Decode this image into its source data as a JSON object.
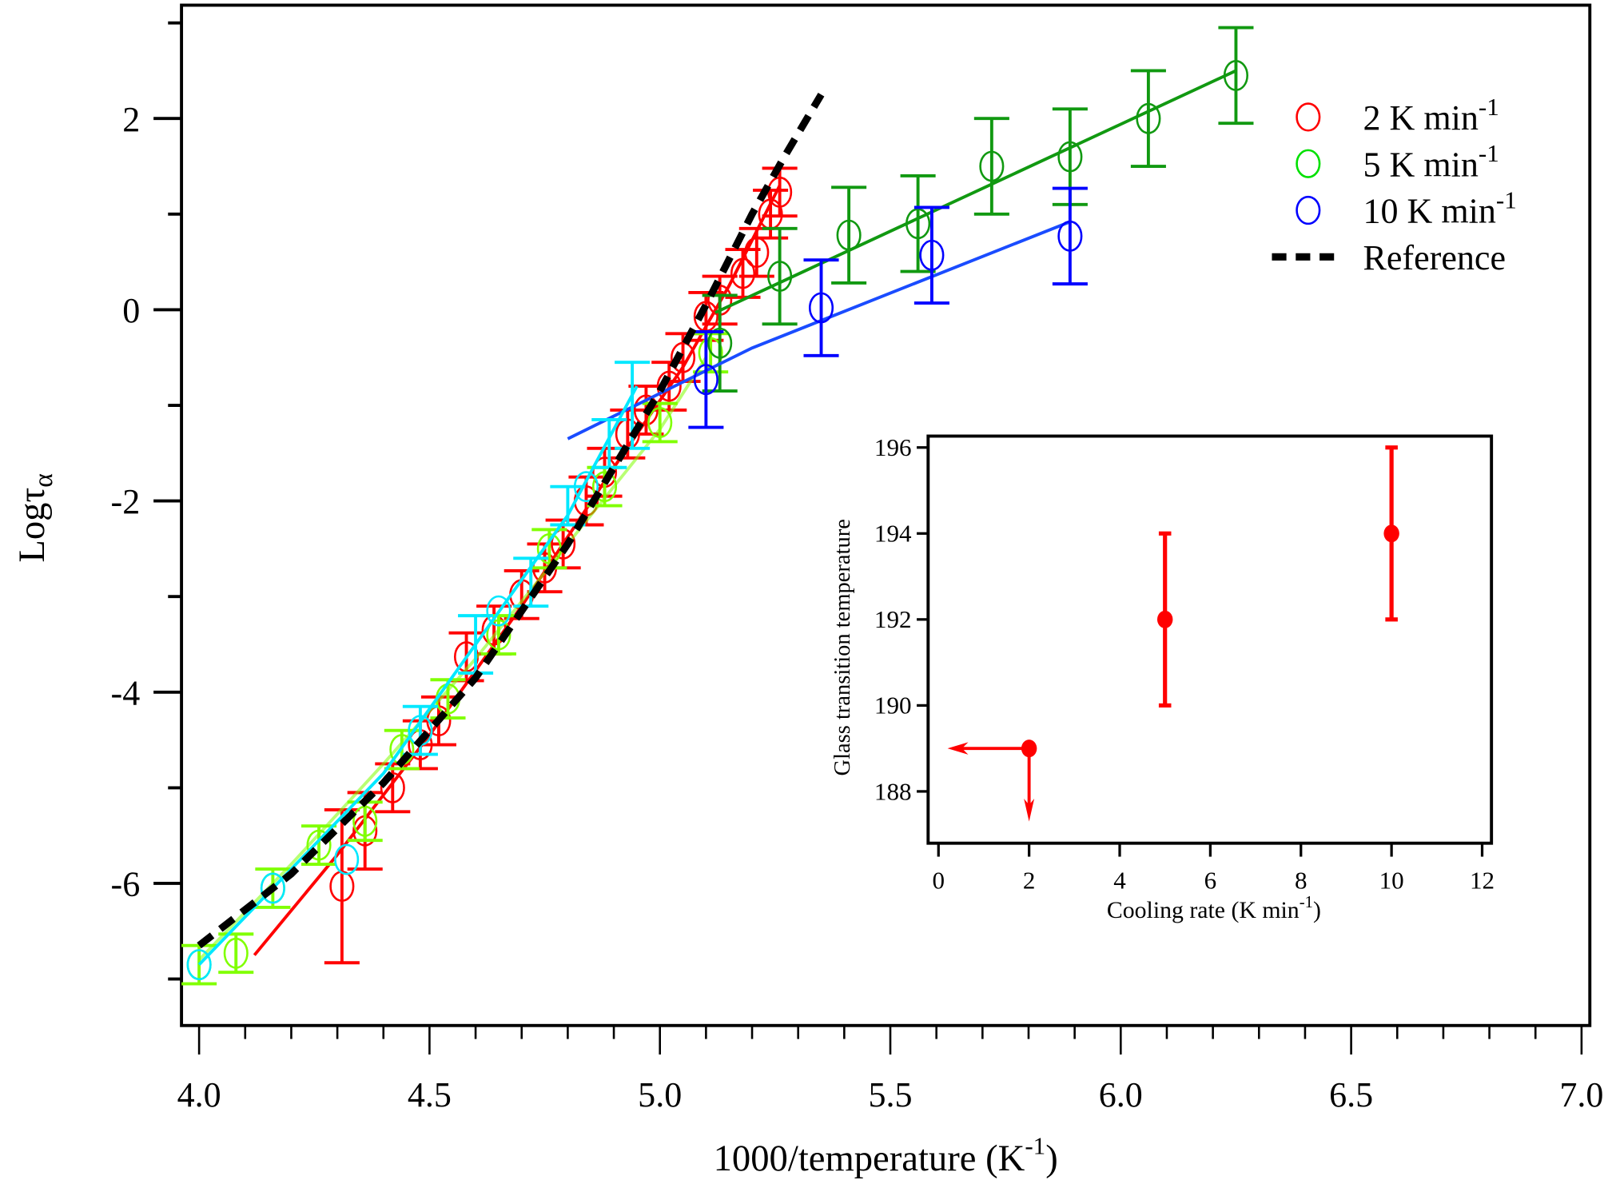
{
  "chart_data": {
    "type": "scatter",
    "main": {
      "xlabel": "1000/temperature (K",
      "xlabel_sup": "-1",
      "xlabel_close": ")",
      "ylabel": "Logτ",
      "ylabel_sub": "α",
      "xlim": [
        3.96,
        7.02
      ],
      "ylim": [
        -7.49,
        3.18
      ],
      "xticks": [
        "4.0",
        "4.5",
        "5.0",
        "5.5",
        "6.0",
        "6.5",
        "7.0"
      ],
      "xtick_values": [
        4.0,
        4.5,
        5.0,
        5.5,
        6.0,
        6.5,
        7.0
      ],
      "yticks": [
        "2",
        "0",
        "-2",
        "-4",
        "-6"
      ],
      "ytick_values": [
        2,
        0,
        -2,
        -4,
        -6
      ],
      "legend_position": "top-right",
      "legend": [
        {
          "label": "2 K min",
          "sup": "-1",
          "color": "#ff0000",
          "marker": "circle"
        },
        {
          "label": "5 K min",
          "sup": "-1",
          "color": "#00e000",
          "marker": "circle"
        },
        {
          "label": "10 K min",
          "sup": "-1",
          "color": "#0000ff",
          "marker": "circle"
        },
        {
          "label": "Reference",
          "sup": "",
          "color": "#000000",
          "marker": "dashed-line"
        }
      ],
      "series": [
        {
          "name": "2 K min-1",
          "color": "#ff0000",
          "points": [
            [
              4.31,
              -6.03,
              0.8
            ],
            [
              4.36,
              -5.45,
              0.4
            ],
            [
              4.42,
              -5.0,
              0.25
            ],
            [
              4.48,
              -4.55,
              0.25
            ],
            [
              4.52,
              -4.3,
              0.25
            ],
            [
              4.58,
              -3.63,
              0.25
            ],
            [
              4.64,
              -3.35,
              0.25
            ],
            [
              4.7,
              -2.98,
              0.25
            ],
            [
              4.75,
              -2.7,
              0.25
            ],
            [
              4.79,
              -2.45,
              0.25
            ],
            [
              4.84,
              -2.0,
              0.25
            ],
            [
              4.88,
              -1.7,
              0.25
            ],
            [
              4.93,
              -1.3,
              0.25
            ],
            [
              4.97,
              -1.05,
              0.25
            ],
            [
              5.02,
              -0.8,
              0.25
            ],
            [
              5.05,
              -0.5,
              0.25
            ],
            [
              5.1,
              -0.07,
              0.25
            ],
            [
              5.13,
              0.1,
              0.25
            ],
            [
              5.18,
              0.38,
              0.25
            ],
            [
              5.21,
              0.6,
              0.25
            ],
            [
              5.24,
              1.0,
              0.25
            ],
            [
              5.26,
              1.23,
              0.25
            ]
          ],
          "fit": [
            [
              4.12,
              -6.75
            ],
            [
              4.3,
              -5.7
            ],
            [
              4.5,
              -4.45
            ],
            [
              4.7,
              -3.1
            ],
            [
              4.9,
              -1.65
            ],
            [
              5.05,
              -0.6
            ],
            [
              5.15,
              0.25
            ],
            [
              5.26,
              1.3
            ]
          ]
        },
        {
          "name": "5 K min-1",
          "color": "#80ff00",
          "points": [
            [
              4.0,
              -6.85,
              0.2
            ],
            [
              4.08,
              -6.73,
              0.2
            ],
            [
              4.16,
              -6.05,
              0.2
            ],
            [
              4.26,
              -5.6,
              0.2
            ],
            [
              4.36,
              -5.35,
              0.2
            ],
            [
              4.44,
              -4.6,
              0.2
            ],
            [
              4.54,
              -4.07,
              0.2
            ],
            [
              4.65,
              -3.4,
              0.2
            ],
            [
              4.76,
              -2.5,
              0.2
            ],
            [
              4.88,
              -1.85,
              0.2
            ],
            [
              5.0,
              -1.18,
              0.2
            ],
            [
              5.11,
              -0.45,
              0.2
            ]
          ],
          "fit": [
            [
              4.0,
              -6.8
            ],
            [
              4.2,
              -5.8
            ],
            [
              4.4,
              -4.75
            ],
            [
              4.6,
              -3.65
            ],
            [
              4.8,
              -2.45
            ],
            [
              5.0,
              -1.25
            ],
            [
              5.1,
              -0.5
            ]
          ]
        },
        {
          "name": "5 K min-1",
          "color": "#119911",
          "points": [
            [
              5.13,
              -0.35,
              0.5
            ],
            [
              5.26,
              0.35,
              0.5
            ],
            [
              5.41,
              0.78,
              0.5
            ],
            [
              5.56,
              0.9,
              0.5
            ],
            [
              5.72,
              1.5,
              0.5
            ],
            [
              5.89,
              1.6,
              0.5
            ],
            [
              6.06,
              2.0,
              0.5
            ],
            [
              6.25,
              2.45,
              0.5
            ]
          ],
          "fit": [
            [
              5.12,
              -0.03
            ],
            [
              6.25,
              2.5
            ]
          ]
        },
        {
          "name": "10 K min-1",
          "color": "#0000ff",
          "points": [
            [
              5.1,
              -0.73,
              0.5
            ],
            [
              5.35,
              0.02,
              0.5
            ],
            [
              5.59,
              0.57,
              0.5
            ],
            [
              5.89,
              0.77,
              0.5
            ]
          ],
          "fit_color": "#1a4cff",
          "fit": [
            [
              4.8,
              -1.35
            ],
            [
              5.2,
              -0.4
            ],
            [
              5.89,
              0.92
            ]
          ]
        },
        {
          "name": "",
          "color": "#00e8ff",
          "points": [
            [
              4.0,
              -6.85,
              0
            ],
            [
              4.16,
              -6.05,
              0
            ],
            [
              4.32,
              -5.75,
              0
            ],
            [
              4.48,
              -4.4,
              0
            ],
            [
              4.65,
              -3.15,
              0
            ],
            [
              4.84,
              -1.85,
              0
            ]
          ],
          "bars": [
            [
              4.48,
              -4.4,
              0.25
            ],
            [
              4.6,
              -3.5,
              0.3
            ],
            [
              4.72,
              -2.85,
              0.25
            ],
            [
              4.8,
              -2.05,
              0.2
            ],
            [
              4.89,
              -1.4,
              0.25
            ],
            [
              4.94,
              -1.0,
              0.45
            ]
          ],
          "fit": [
            [
              4.0,
              -6.85
            ],
            [
              4.2,
              -5.85
            ],
            [
              4.4,
              -4.85
            ],
            [
              4.6,
              -3.5
            ],
            [
              4.8,
              -2.15
            ],
            [
              4.95,
              -0.8
            ]
          ]
        },
        {
          "name": "Reference",
          "color": "#000000",
          "dashed": true,
          "fit": [
            [
              4.0,
              -6.65
            ],
            [
              4.2,
              -5.9
            ],
            [
              4.4,
              -4.95
            ],
            [
              4.6,
              -3.85
            ],
            [
              4.8,
              -2.45
            ],
            [
              4.9,
              -1.65
            ],
            [
              5.0,
              -0.85
            ],
            [
              5.1,
              0.05
            ],
            [
              5.2,
              1.0
            ],
            [
              5.27,
              1.6
            ],
            [
              5.35,
              2.25
            ]
          ]
        }
      ]
    },
    "inset": {
      "type": "scatter",
      "xlabel": "Cooling rate (K min",
      "xlabel_sup": "-1",
      "xlabel_close": ")",
      "ylabel": "Glass transition temperature",
      "xlim": [
        -0.23,
        12.2
      ],
      "ylim": [
        187.2,
        196.27
      ],
      "xticks": [
        "0",
        "2",
        "4",
        "6",
        "8",
        "10",
        "12"
      ],
      "xtick_values": [
        0,
        2,
        4,
        6,
        8,
        10,
        12
      ],
      "yticks": [
        "196",
        "194",
        "192",
        "190",
        "188"
      ],
      "ytick_values": [
        196,
        194,
        192,
        190,
        188
      ],
      "color": "#ff0000",
      "points": [
        {
          "x": 2,
          "y": 189,
          "err": 0,
          "upper_limit_arrows": true,
          "arrow_left_to_x": 0.2,
          "arrow_down_to_y": 187.3
        },
        {
          "x": 5,
          "y": 192,
          "err": 2
        },
        {
          "x": 10,
          "y": 194,
          "err": 2
        }
      ]
    }
  }
}
